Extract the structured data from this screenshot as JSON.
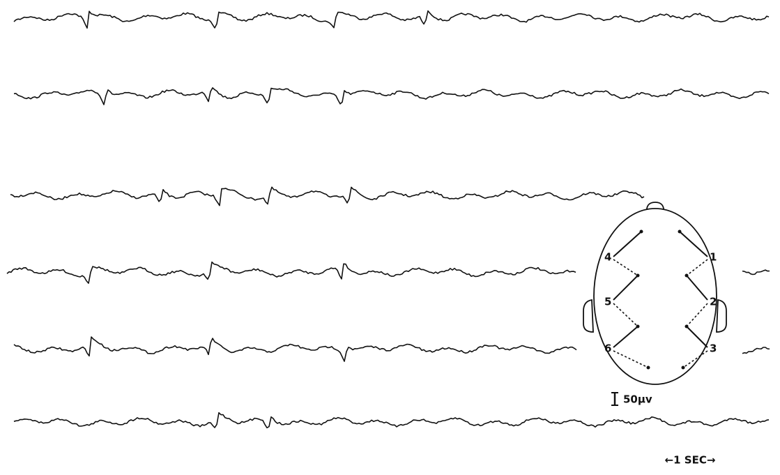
{
  "montage": {
    "channels": [
      "1",
      "2",
      "3",
      "4",
      "5",
      "6"
    ]
  },
  "calibration": {
    "amplitude": "50μv",
    "time": "←1 SEC→"
  }
}
